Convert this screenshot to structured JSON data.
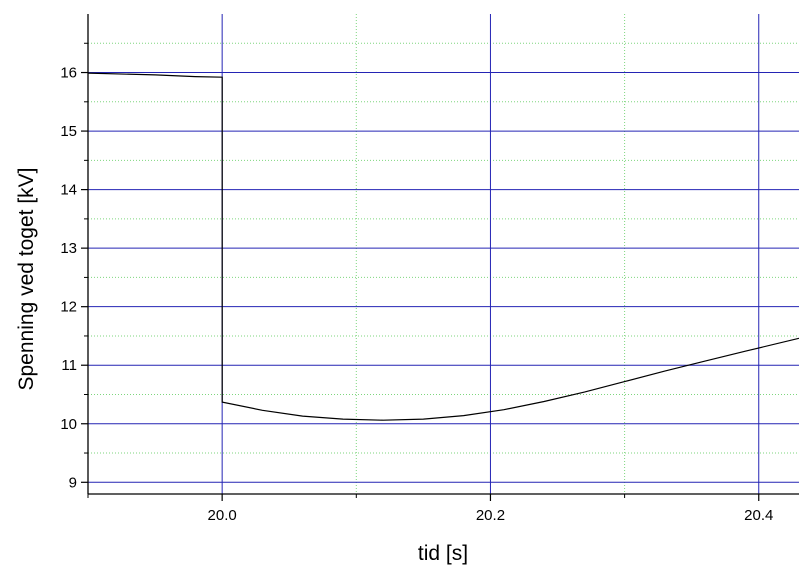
{
  "chart_data": {
    "type": "line",
    "title": "",
    "xlabel": "tid [s]",
    "ylabel": "Spenning ved toget [kV]",
    "xlim": [
      19.9,
      20.43
    ],
    "ylim": [
      8.8,
      17.0
    ],
    "x_ticks": [
      20.0,
      20.2,
      20.4
    ],
    "x_tick_labels": [
      "20.0",
      "20.2",
      "20.4"
    ],
    "x_minor_ticks": [
      19.9,
      20.1,
      20.3
    ],
    "y_ticks": [
      9,
      10,
      11,
      12,
      13,
      14,
      15,
      16
    ],
    "y_tick_labels": [
      "9",
      "10",
      "11",
      "12",
      "13",
      "14",
      "15",
      "16"
    ],
    "grid": true,
    "legend": "none",
    "colors": {
      "major_grid": "#2424b4",
      "minor_grid": "#7ed67e",
      "line": "#000000",
      "axis": "#000000"
    },
    "series": [
      {
        "x": [
          19.9,
          19.95,
          19.98,
          20.0,
          20.0,
          20.03,
          20.06,
          20.09,
          20.12,
          20.15,
          20.18,
          20.21,
          20.24,
          20.27,
          20.3,
          20.33,
          20.36,
          20.39,
          20.43
        ],
        "y": [
          15.99,
          15.96,
          15.93,
          15.92,
          10.37,
          10.23,
          10.13,
          10.08,
          10.06,
          10.08,
          10.14,
          10.24,
          10.38,
          10.54,
          10.72,
          10.9,
          11.07,
          11.24,
          11.46
        ]
      }
    ]
  }
}
